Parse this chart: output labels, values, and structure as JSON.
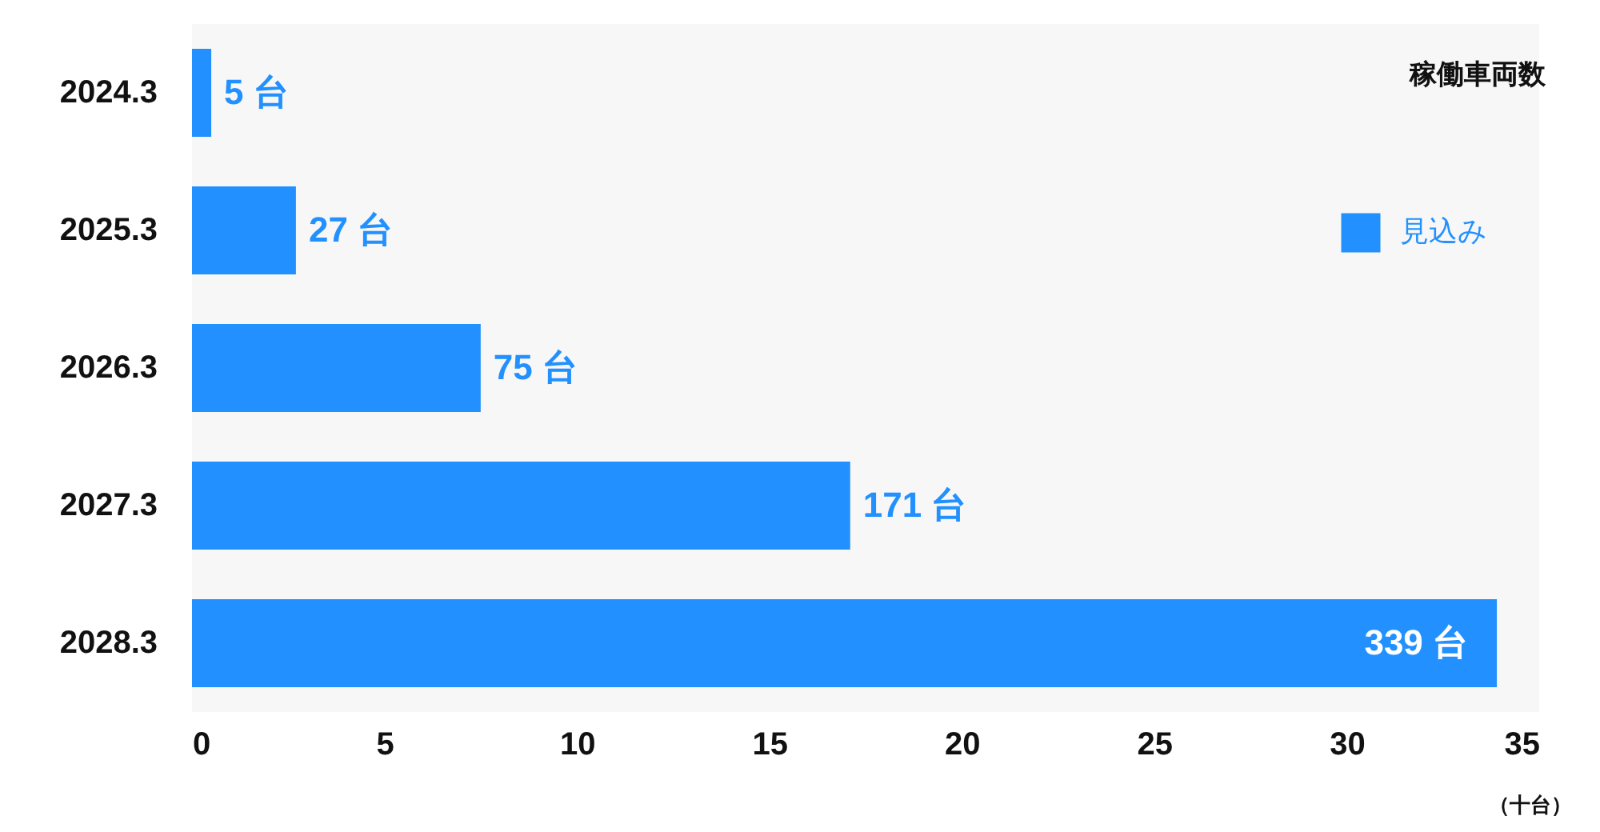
{
  "chart_data": {
    "type": "bar",
    "orientation": "horizontal",
    "title": "稼働車両数",
    "xlabel": "（十台）",
    "categories": [
      "2024.3",
      "2025.3",
      "2026.3",
      "2027.3",
      "2028.3"
    ],
    "series": [
      {
        "name": "見込み",
        "color": "#2291ff",
        "values": [
          0.5,
          2.7,
          7.5,
          17.1,
          33.9
        ]
      }
    ],
    "value_labels": [
      "5 台",
      "27 台",
      "75 台",
      "171 台",
      "339 台"
    ],
    "xlim": [
      0,
      35
    ],
    "xticks": [
      0,
      5,
      10,
      15,
      20,
      25,
      30,
      35
    ],
    "grid": false,
    "legend": "top right"
  }
}
